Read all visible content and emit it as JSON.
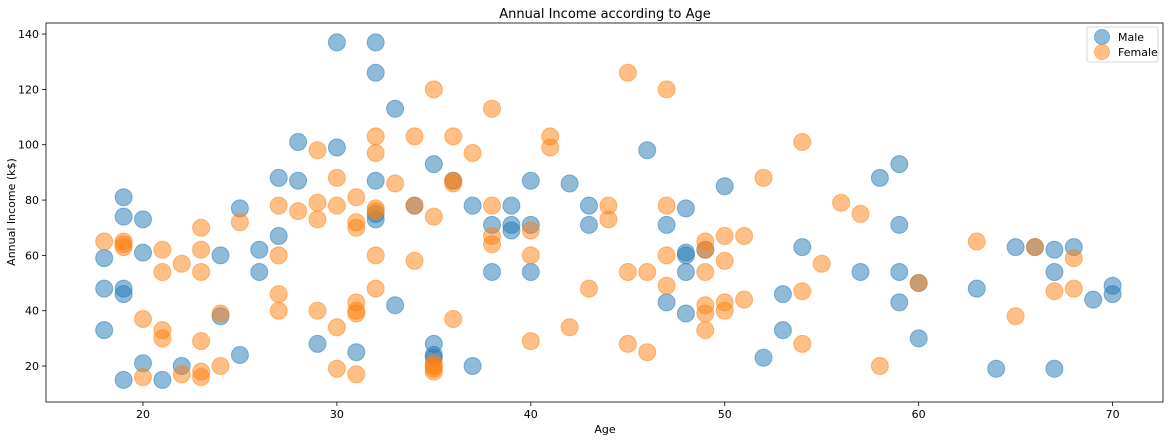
{
  "chart_data": {
    "type": "scatter",
    "title": "Annual Income according to Age",
    "xlabel": "Age",
    "ylabel": "Annual Income (k$)",
    "xlim": [
      15,
      72.6
    ],
    "ylim": [
      7,
      144
    ],
    "xticks": [
      20,
      30,
      40,
      50,
      60,
      70
    ],
    "yticks": [
      20,
      40,
      60,
      80,
      100,
      120,
      140
    ],
    "grid": false,
    "legend_position": "top-right",
    "series": [
      {
        "name": "Male",
        "color": "#1f77b4",
        "points": [
          [
            19,
            15
          ],
          [
            21,
            15
          ],
          [
            20,
            21
          ],
          [
            22,
            20
          ],
          [
            25,
            24
          ],
          [
            18,
            33
          ],
          [
            19,
            46
          ],
          [
            18,
            48
          ],
          [
            19,
            48
          ],
          [
            24,
            38
          ],
          [
            18,
            59
          ],
          [
            20,
            61
          ],
          [
            24,
            60
          ],
          [
            26,
            54
          ],
          [
            26,
            62
          ],
          [
            27,
            67
          ],
          [
            20,
            73
          ],
          [
            19,
            74
          ],
          [
            25,
            77
          ],
          [
            19,
            81
          ],
          [
            27,
            88
          ],
          [
            28,
            87
          ],
          [
            28,
            101
          ],
          [
            30,
            99
          ],
          [
            30,
            137
          ],
          [
            32,
            137
          ],
          [
            32,
            126
          ],
          [
            33,
            113
          ],
          [
            29,
            28
          ],
          [
            31,
            25
          ],
          [
            33,
            42
          ],
          [
            32,
            73
          ],
          [
            32,
            75
          ],
          [
            32,
            87
          ],
          [
            34,
            78
          ],
          [
            35,
            93
          ],
          [
            35,
            23
          ],
          [
            35,
            24
          ],
          [
            35,
            28
          ],
          [
            36,
            87
          ],
          [
            37,
            20
          ],
          [
            37,
            78
          ],
          [
            38,
            54
          ],
          [
            38,
            71
          ],
          [
            39,
            69
          ],
          [
            39,
            71
          ],
          [
            39,
            78
          ],
          [
            40,
            54
          ],
          [
            40,
            71
          ],
          [
            40,
            87
          ],
          [
            42,
            86
          ],
          [
            43,
            71
          ],
          [
            43,
            78
          ],
          [
            46,
            98
          ],
          [
            47,
            43
          ],
          [
            47,
            71
          ],
          [
            48,
            39
          ],
          [
            48,
            54
          ],
          [
            48,
            60
          ],
          [
            48,
            61
          ],
          [
            48,
            77
          ],
          [
            49,
            62
          ],
          [
            50,
            85
          ],
          [
            52,
            23
          ],
          [
            53,
            33
          ],
          [
            53,
            46
          ],
          [
            54,
            63
          ],
          [
            57,
            54
          ],
          [
            58,
            88
          ],
          [
            59,
            43
          ],
          [
            59,
            54
          ],
          [
            59,
            71
          ],
          [
            59,
            93
          ],
          [
            60,
            30
          ],
          [
            60,
            50
          ],
          [
            63,
            48
          ],
          [
            64,
            19
          ],
          [
            65,
            63
          ],
          [
            66,
            63
          ],
          [
            67,
            19
          ],
          [
            67,
            54
          ],
          [
            67,
            62
          ],
          [
            68,
            63
          ],
          [
            69,
            44
          ],
          [
            70,
            46
          ],
          [
            70,
            49
          ]
        ]
      },
      {
        "name": "Female",
        "color": "#ff7f0e",
        "points": [
          [
            20,
            16
          ],
          [
            23,
            16
          ],
          [
            23,
            18
          ],
          [
            22,
            17
          ],
          [
            21,
            30
          ],
          [
            21,
            33
          ],
          [
            20,
            37
          ],
          [
            23,
            29
          ],
          [
            24,
            20
          ],
          [
            24,
            39
          ],
          [
            18,
            65
          ],
          [
            19,
            63
          ],
          [
            19,
            64
          ],
          [
            19,
            65
          ],
          [
            21,
            54
          ],
          [
            21,
            62
          ],
          [
            22,
            57
          ],
          [
            23,
            54
          ],
          [
            23,
            62
          ],
          [
            23,
            70
          ],
          [
            25,
            72
          ],
          [
            27,
            40
          ],
          [
            27,
            46
          ],
          [
            27,
            60
          ],
          [
            27,
            78
          ],
          [
            28,
            76
          ],
          [
            29,
            40
          ],
          [
            29,
            73
          ],
          [
            29,
            79
          ],
          [
            29,
            98
          ],
          [
            30,
            19
          ],
          [
            30,
            34
          ],
          [
            30,
            78
          ],
          [
            30,
            88
          ],
          [
            31,
            17
          ],
          [
            31,
            39
          ],
          [
            31,
            40
          ],
          [
            31,
            43
          ],
          [
            31,
            70
          ],
          [
            31,
            72
          ],
          [
            31,
            81
          ],
          [
            32,
            48
          ],
          [
            32,
            60
          ],
          [
            32,
            76
          ],
          [
            32,
            77
          ],
          [
            32,
            97
          ],
          [
            32,
            103
          ],
          [
            33,
            86
          ],
          [
            34,
            58
          ],
          [
            34,
            78
          ],
          [
            34,
            103
          ],
          [
            35,
            18
          ],
          [
            35,
            19
          ],
          [
            35,
            20
          ],
          [
            35,
            21
          ],
          [
            35,
            74
          ],
          [
            35,
            120
          ],
          [
            36,
            37
          ],
          [
            36,
            86
          ],
          [
            36,
            87
          ],
          [
            36,
            103
          ],
          [
            37,
            97
          ],
          [
            38,
            64
          ],
          [
            38,
            67
          ],
          [
            38,
            78
          ],
          [
            38,
            113
          ],
          [
            40,
            29
          ],
          [
            40,
            60
          ],
          [
            40,
            69
          ],
          [
            41,
            99
          ],
          [
            41,
            103
          ],
          [
            42,
            34
          ],
          [
            43,
            48
          ],
          [
            44,
            73
          ],
          [
            44,
            78
          ],
          [
            45,
            28
          ],
          [
            45,
            54
          ],
          [
            45,
            126
          ],
          [
            46,
            25
          ],
          [
            46,
            54
          ],
          [
            47,
            49
          ],
          [
            47,
            60
          ],
          [
            47,
            78
          ],
          [
            47,
            120
          ],
          [
            49,
            33
          ],
          [
            49,
            39
          ],
          [
            49,
            42
          ],
          [
            49,
            54
          ],
          [
            49,
            62
          ],
          [
            49,
            65
          ],
          [
            50,
            40
          ],
          [
            50,
            43
          ],
          [
            50,
            58
          ],
          [
            50,
            67
          ],
          [
            51,
            44
          ],
          [
            51,
            67
          ],
          [
            52,
            88
          ],
          [
            54,
            28
          ],
          [
            54,
            47
          ],
          [
            54,
            101
          ],
          [
            55,
            57
          ],
          [
            56,
            79
          ],
          [
            57,
            75
          ],
          [
            58,
            20
          ],
          [
            60,
            50
          ],
          [
            63,
            65
          ],
          [
            65,
            38
          ],
          [
            66,
            63
          ],
          [
            67,
            47
          ],
          [
            68,
            48
          ],
          [
            68,
            59
          ]
        ]
      }
    ]
  }
}
